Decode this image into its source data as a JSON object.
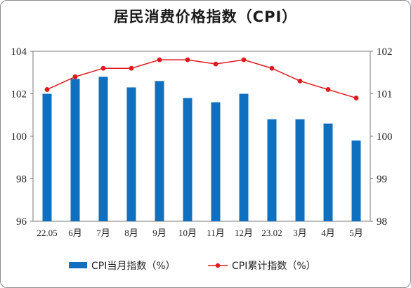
{
  "chart_data": {
    "type": "bar+line",
    "title": "居民消费价格指数（CPI）",
    "categories": [
      "22.05",
      "6月",
      "7月",
      "8月",
      "9月",
      "10月",
      "11月",
      "12月",
      "23.02",
      "3月",
      "4月",
      "5月"
    ],
    "series": [
      {
        "name": "CPI当月指数（%）",
        "type": "bar",
        "axis": "left",
        "color": "#1070c0",
        "values": [
          102.0,
          102.7,
          102.8,
          102.3,
          102.6,
          101.8,
          101.6,
          102.0,
          100.8,
          100.8,
          100.6,
          99.8
        ]
      },
      {
        "name": "CPI累计指数（%）",
        "type": "line",
        "axis": "right",
        "color": "#e0191f",
        "values": [
          101.1,
          101.4,
          101.6,
          101.6,
          101.8,
          101.8,
          101.7,
          101.8,
          101.6,
          101.3,
          101.1,
          100.9
        ]
      }
    ],
    "y_left": {
      "min": 96,
      "max": 104,
      "ticks": [
        "96",
        "98",
        "100",
        "102",
        "104"
      ]
    },
    "y_right": {
      "min": 98,
      "max": 102,
      "ticks": [
        "98",
        "99",
        "100",
        "101",
        "102"
      ]
    },
    "grid": false,
    "legend": "bottom"
  }
}
